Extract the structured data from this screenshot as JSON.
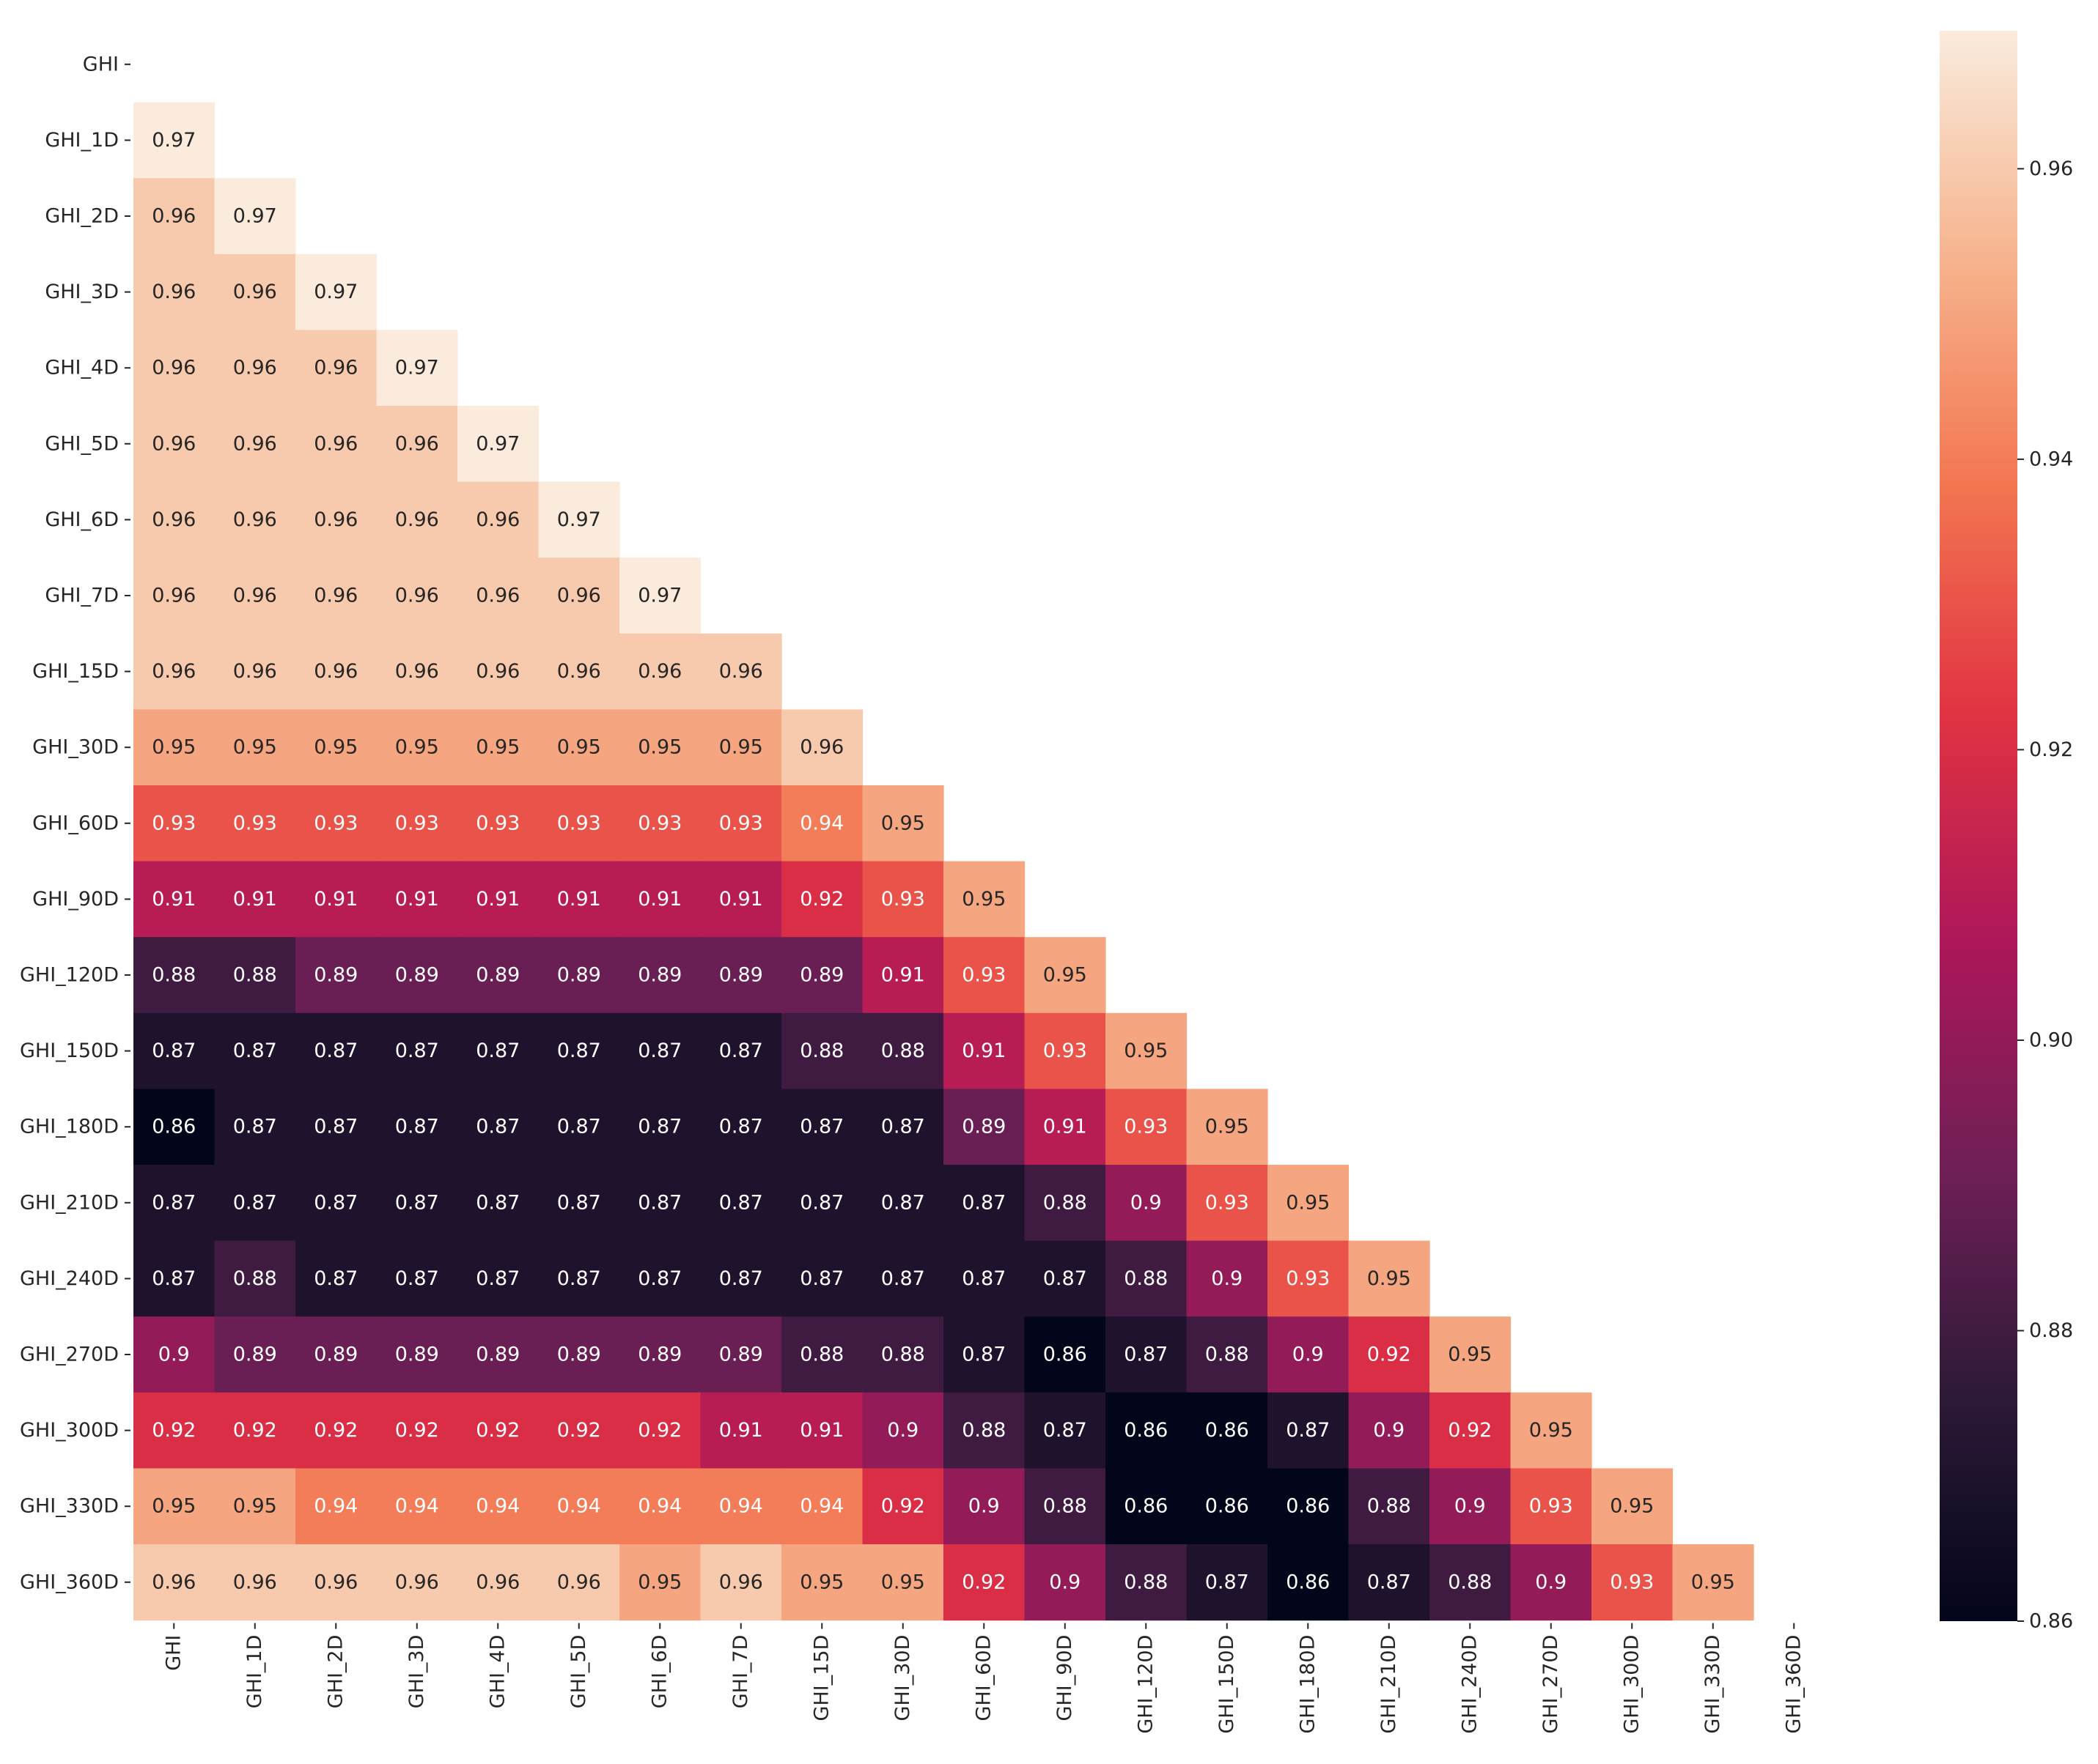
{
  "chart_data": {
    "type": "heatmap",
    "title": "",
    "xlabel": "",
    "ylabel": "",
    "labels": [
      "GHI",
      "GHI_1D",
      "GHI_2D",
      "GHI_3D",
      "GHI_4D",
      "GHI_5D",
      "GHI_6D",
      "GHI_7D",
      "GHI_15D",
      "GHI_30D",
      "GHI_60D",
      "GHI_90D",
      "GHI_120D",
      "GHI_150D",
      "GHI_180D",
      "GHI_210D",
      "GHI_240D",
      "GHI_270D",
      "GHI_300D",
      "GHI_330D",
      "GHI_360D"
    ],
    "mask": "upper-triangle-including-diagonal",
    "annotations": true,
    "rows": [
      [],
      [
        "0.97"
      ],
      [
        "0.96",
        "0.97"
      ],
      [
        "0.96",
        "0.96",
        "0.97"
      ],
      [
        "0.96",
        "0.96",
        "0.96",
        "0.97"
      ],
      [
        "0.96",
        "0.96",
        "0.96",
        "0.96",
        "0.97"
      ],
      [
        "0.96",
        "0.96",
        "0.96",
        "0.96",
        "0.96",
        "0.97"
      ],
      [
        "0.96",
        "0.96",
        "0.96",
        "0.96",
        "0.96",
        "0.96",
        "0.97"
      ],
      [
        "0.96",
        "0.96",
        "0.96",
        "0.96",
        "0.96",
        "0.96",
        "0.96",
        "0.96"
      ],
      [
        "0.95",
        "0.95",
        "0.95",
        "0.95",
        "0.95",
        "0.95",
        "0.95",
        "0.95",
        "0.96"
      ],
      [
        "0.93",
        "0.93",
        "0.93",
        "0.93",
        "0.93",
        "0.93",
        "0.93",
        "0.93",
        "0.94",
        "0.95"
      ],
      [
        "0.91",
        "0.91",
        "0.91",
        "0.91",
        "0.91",
        "0.91",
        "0.91",
        "0.91",
        "0.92",
        "0.93",
        "0.95"
      ],
      [
        "0.88",
        "0.88",
        "0.89",
        "0.89",
        "0.89",
        "0.89",
        "0.89",
        "0.89",
        "0.89",
        "0.91",
        "0.93",
        "0.95"
      ],
      [
        "0.87",
        "0.87",
        "0.87",
        "0.87",
        "0.87",
        "0.87",
        "0.87",
        "0.87",
        "0.88",
        "0.88",
        "0.91",
        "0.93",
        "0.95"
      ],
      [
        "0.86",
        "0.87",
        "0.87",
        "0.87",
        "0.87",
        "0.87",
        "0.87",
        "0.87",
        "0.87",
        "0.87",
        "0.89",
        "0.91",
        "0.93",
        "0.95"
      ],
      [
        "0.87",
        "0.87",
        "0.87",
        "0.87",
        "0.87",
        "0.87",
        "0.87",
        "0.87",
        "0.87",
        "0.87",
        "0.87",
        "0.88",
        "0.9",
        "0.93",
        "0.95"
      ],
      [
        "0.87",
        "0.88",
        "0.87",
        "0.87",
        "0.87",
        "0.87",
        "0.87",
        "0.87",
        "0.87",
        "0.87",
        "0.87",
        "0.87",
        "0.88",
        "0.9",
        "0.93",
        "0.95"
      ],
      [
        "0.9",
        "0.89",
        "0.89",
        "0.89",
        "0.89",
        "0.89",
        "0.89",
        "0.89",
        "0.88",
        "0.88",
        "0.87",
        "0.86",
        "0.87",
        "0.88",
        "0.9",
        "0.92",
        "0.95"
      ],
      [
        "0.92",
        "0.92",
        "0.92",
        "0.92",
        "0.92",
        "0.92",
        "0.92",
        "0.91",
        "0.91",
        "0.9",
        "0.88",
        "0.87",
        "0.86",
        "0.86",
        "0.87",
        "0.9",
        "0.92",
        "0.95"
      ],
      [
        "0.95",
        "0.95",
        "0.94",
        "0.94",
        "0.94",
        "0.94",
        "0.94",
        "0.94",
        "0.94",
        "0.92",
        "0.9",
        "0.88",
        "0.86",
        "0.86",
        "0.86",
        "0.88",
        "0.9",
        "0.93",
        "0.95"
      ],
      [
        "0.96",
        "0.96",
        "0.96",
        "0.96",
        "0.96",
        "0.96",
        "0.95",
        "0.96",
        "0.95",
        "0.95",
        "0.92",
        "0.9",
        "0.88",
        "0.87",
        "0.86",
        "0.87",
        "0.88",
        "0.9",
        "0.93",
        "0.95"
      ]
    ],
    "colorbar": {
      "min": 0.86,
      "max": 0.9695,
      "ticks": [
        "0.86",
        "0.88",
        "0.90",
        "0.92",
        "0.94",
        "0.96"
      ],
      "colormap": "rocket",
      "colormap_stops": [
        "#03051a",
        "#2d1a38",
        "#701f57",
        "#ae1759",
        "#e13342",
        "#f37651",
        "#f6b48e",
        "#faebdd"
      ]
    },
    "grid": false,
    "legend": "colorbar-right"
  }
}
